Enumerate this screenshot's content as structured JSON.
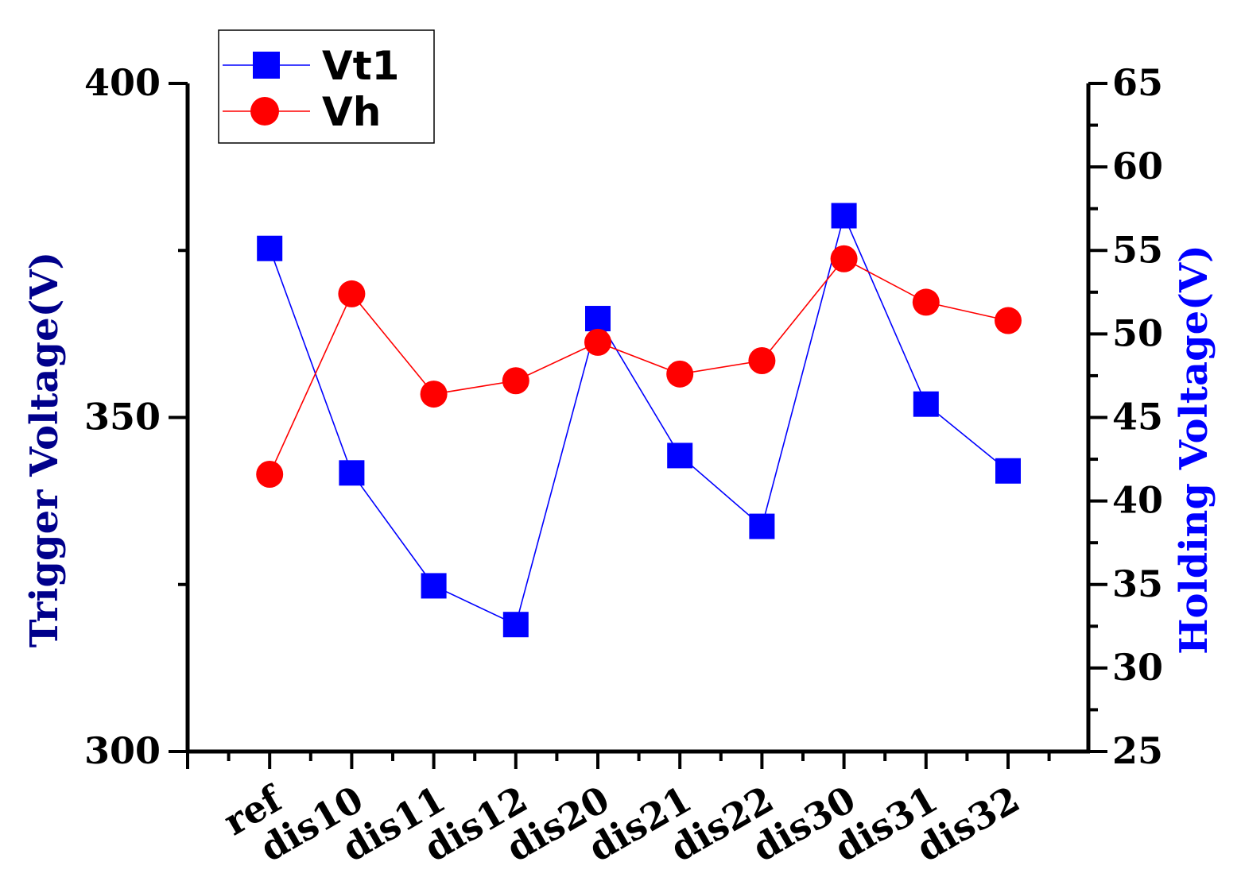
{
  "chart_data": {
    "type": "line",
    "categories": [
      "ref",
      "dis10",
      "dis11",
      "dis12",
      "dis20",
      "dis21",
      "dis22",
      "dis30",
      "dis31",
      "dis32"
    ],
    "series": [
      {
        "name": "Vt1",
        "axis": "left",
        "color": "#0000ff",
        "marker": "square",
        "values": [
          375.3,
          341.7,
          324.8,
          319.0,
          364.8,
          344.3,
          333.7,
          380.2,
          352.0,
          342.0
        ]
      },
      {
        "name": "Vh",
        "axis": "right",
        "color": "#ff0000",
        "marker": "circle",
        "values": [
          41.6,
          52.4,
          46.4,
          47.2,
          49.5,
          47.6,
          48.4,
          54.5,
          51.9,
          50.8
        ]
      }
    ],
    "ylabel_left": "Trigger Voltage(V)",
    "ylabel_right": "Holding Voltage(V)",
    "ylim_left": [
      300,
      400
    ],
    "ylim_right": [
      25,
      65
    ],
    "yticks_left": [
      "300",
      "350",
      "400"
    ],
    "yticks_right": [
      "25",
      "30",
      "35",
      "40",
      "45",
      "50",
      "55",
      "60",
      "65"
    ],
    "colors": {
      "ylabel_left": "#00008b",
      "ylabel_right": "#0000ff"
    },
    "legend_position": "top-left",
    "grid": false
  }
}
